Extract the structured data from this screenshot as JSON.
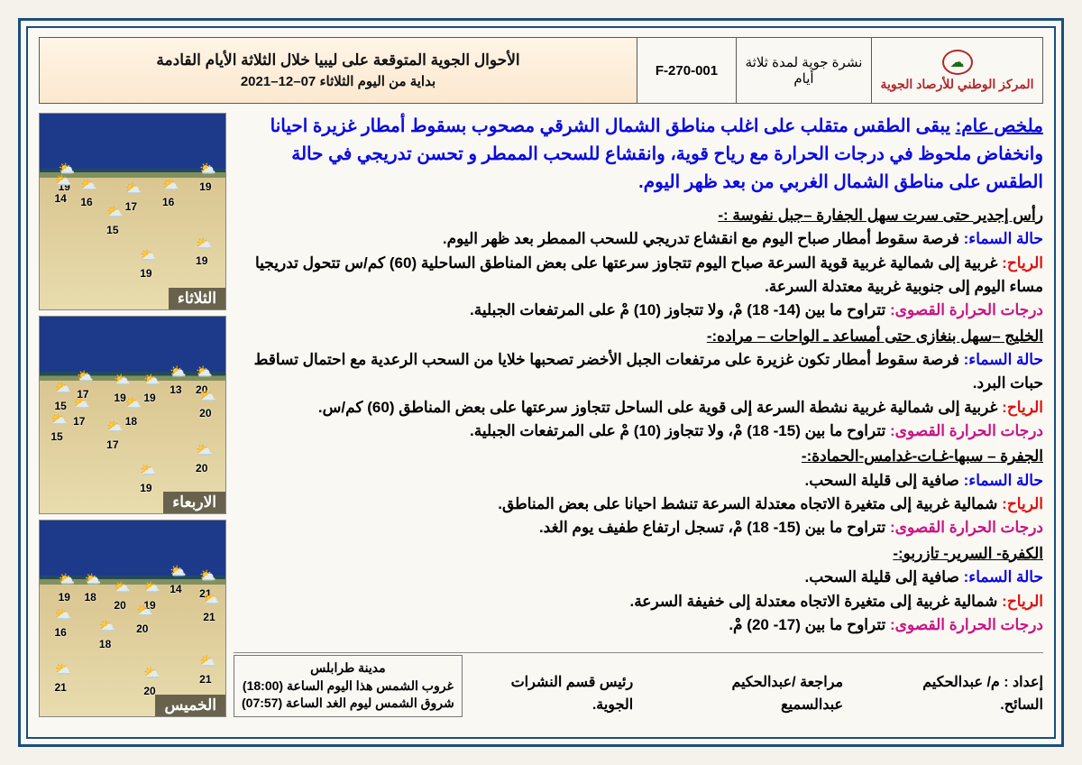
{
  "header": {
    "org_name": "المركز الوطني للأرصاد الجوية",
    "subtitle": "نشرة جوية لمدة ثلاثة أيام",
    "code": "F-270-001",
    "title_l1": "الأحوال الجوية المتوقعة على ليبيا خلال الثلاثة الأيام القادمة",
    "title_l2": "بداية من اليوم الثلاثاء 07–12–2021"
  },
  "summary": {
    "label": "ملخص عام:",
    "text": "يبقى الطقس متقلب على اغلب مناطق الشمال الشرقي مصحوب بسقوط أمطار غزيرة احيانا وانخفاض ملحوظ في درجات الحرارة مع رياح قوية، وانقشاع للسحب الممطر و تحسن تدريجي في حالة الطقس على مناطق الشمال الغربي من بعد ظهر اليوم."
  },
  "regions": [
    {
      "head": "رأس إجدير حتى سرت سهل الجفارة –جبل نفوسة :-",
      "sky": "فرصة سقوط أمطار صباح اليوم مع انقشاع تدريجي للسحب الممطر بعد ظهر اليوم.",
      "wind": "غربية إلى شمالية غربية قوية السرعة صباح اليوم تتجاوز سرعتها على بعض المناطق الساحلية (60) كم/س تتحول تدريجيا مساء اليوم إلى جنوبية غربية معتدلة السرعة.",
      "temp": "تتراوح ما بين (14- 18) مْ، ولا تتجاوز (10) مْ على المرتفعات الجبلية."
    },
    {
      "head": "الخليج –سهل بنغازى حتى أمساعد ـ الواحات – مراده:-",
      "sky": "فرصة سقوط أمطار تكون غزيرة على مرتفعات الجبل الأخضر تصحبها خلايا من السحب الرعدية مع احتمال تساقط حبات البرد.",
      "wind": "غربية إلى شمالية غربية نشطة السرعة إلى قوية على الساحل تتجاوز سرعتها على بعض المناطق (60) كم/س.",
      "temp": "تتراوح ما بين (15- 18) مْ، ولا تتجاوز (10) مْ على المرتفعات الجبلية."
    },
    {
      "head": "الجفرة – سبها-غـات-غدامس-الحمادة:-",
      "sky": "صافية إلى قليلة السحب.",
      "wind": "شمالية غربية إلى متغيرة الاتجاه معتدلة السرعة تنشط احيانا على بعض المناطق.",
      "temp": "تتراوح ما بين (15- 18) مْ، تسجل ارتفاع طفيف يوم الغد."
    },
    {
      "head": "الكفرة- السرير- تازربو:-",
      "sky": "صافية إلى قليلة السحب.",
      "wind": "شمالية غربية إلى متغيرة الاتجاه معتدلة إلى خفيفة السرعة.",
      "temp": "تتراوح ما بين (17- 20) مْ."
    }
  ],
  "labels": {
    "sky": "حالة السماء:",
    "wind": "الرياح:",
    "temp": "درجات الحرارة القصوى:"
  },
  "footer": {
    "author": "إعداد : م/ عبدالحكيم السائح.",
    "review": "مراجعة /عبدالحكيم عبدالسميع",
    "chief": "رئيس قسم النشرات الجوية."
  },
  "sunbox": {
    "city": "مدينة طرابلس",
    "sunset": "غروب الشمس هذا اليوم الساعة (18:00)",
    "sunrise": "شروق الشمس ليوم الغد الساعة (07:57)"
  },
  "maps": [
    {
      "day": "الثلاثاء",
      "temps": [
        {
          "v": "19",
          "t": 34,
          "l": 10
        },
        {
          "v": "19",
          "t": 34,
          "l": 86
        },
        {
          "v": "16",
          "t": 42,
          "l": 22
        },
        {
          "v": "17",
          "t": 44,
          "l": 46
        },
        {
          "v": "16",
          "t": 42,
          "l": 66
        },
        {
          "v": "14",
          "t": 40,
          "l": 8
        },
        {
          "v": "15",
          "t": 56,
          "l": 36
        },
        {
          "v": "19",
          "t": 78,
          "l": 54
        },
        {
          "v": "19",
          "t": 72,
          "l": 84
        }
      ]
    },
    {
      "day": "الاربعاء",
      "temps": [
        {
          "v": "20",
          "t": 34,
          "l": 84
        },
        {
          "v": "13",
          "t": 34,
          "l": 70
        },
        {
          "v": "19",
          "t": 38,
          "l": 56
        },
        {
          "v": "19",
          "t": 38,
          "l": 40
        },
        {
          "v": "17",
          "t": 36,
          "l": 20
        },
        {
          "v": "15",
          "t": 42,
          "l": 8
        },
        {
          "v": "20",
          "t": 46,
          "l": 86
        },
        {
          "v": "18",
          "t": 50,
          "l": 46
        },
        {
          "v": "17",
          "t": 50,
          "l": 18
        },
        {
          "v": "15",
          "t": 58,
          "l": 6
        },
        {
          "v": "17",
          "t": 62,
          "l": 36
        },
        {
          "v": "19",
          "t": 84,
          "l": 54
        },
        {
          "v": "20",
          "t": 74,
          "l": 84
        }
      ]
    },
    {
      "day": "الخميس",
      "temps": [
        {
          "v": "21",
          "t": 34,
          "l": 86
        },
        {
          "v": "14",
          "t": 32,
          "l": 70
        },
        {
          "v": "19",
          "t": 40,
          "l": 56
        },
        {
          "v": "20",
          "t": 40,
          "l": 40
        },
        {
          "v": "18",
          "t": 36,
          "l": 24
        },
        {
          "v": "19",
          "t": 36,
          "l": 10
        },
        {
          "v": "21",
          "t": 46,
          "l": 88
        },
        {
          "v": "20",
          "t": 52,
          "l": 52
        },
        {
          "v": "18",
          "t": 60,
          "l": 32
        },
        {
          "v": "16",
          "t": 54,
          "l": 8
        },
        {
          "v": "20",
          "t": 84,
          "l": 56
        },
        {
          "v": "21",
          "t": 78,
          "l": 86
        },
        {
          "v": "21",
          "t": 82,
          "l": 8
        }
      ]
    }
  ],
  "colors": {
    "frame": "#1a4f7a",
    "accent": "#b0282e",
    "summary": "#0a0adf",
    "wind": "#d11",
    "temp": "#c71585"
  }
}
